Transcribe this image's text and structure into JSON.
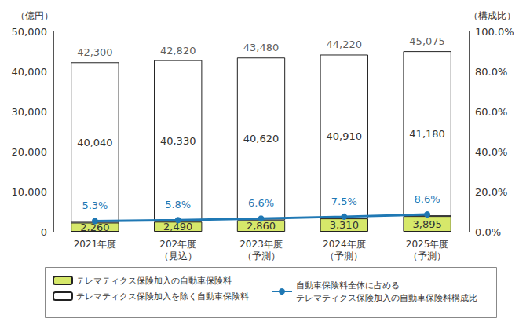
{
  "chart_data": {
    "type": "bar",
    "stacked": true,
    "data_labels": true,
    "grid": false,
    "legend": "bottom",
    "ylabel": "（億円）",
    "y2label": "（構成比）",
    "categories": [
      "2021年度",
      "202年度\n（見込）",
      "2023年度\n（予測）",
      "2024年度\n（予測）",
      "2025年度\n（予測）"
    ],
    "series": [
      {
        "name": "テレマティクス保険加入の自動車保険料",
        "type": "bar",
        "color": "#d6e86a",
        "values": [
          2260,
          2490,
          2860,
          3310,
          3895
        ],
        "value_labels": [
          "2,260",
          "2,490",
          "2,860",
          "3,310",
          "3,895"
        ]
      },
      {
        "name": "テレマティクス保険加入を除く自動車保険料",
        "type": "bar",
        "color": "#ffffff",
        "values": [
          40040,
          40330,
          40620,
          40910,
          41180
        ],
        "value_labels": [
          "40,040",
          "40,330",
          "40,620",
          "40,910",
          "41,180"
        ]
      },
      {
        "name": "自動車保険料全体に占める\nテレマティクス保険加入の自動車保険料構成比",
        "type": "line",
        "axis": "y2",
        "color": "#1f78b4",
        "marker": "circle",
        "values": [
          5.3,
          5.8,
          6.6,
          7.5,
          8.6
        ],
        "value_labels": [
          "5.3%",
          "5.8%",
          "6.6%",
          "7.5%",
          "8.6%"
        ]
      }
    ],
    "totals": {
      "values": [
        42300,
        42820,
        43480,
        44220,
        45075
      ],
      "value_labels": [
        "42,300",
        "42,820",
        "43,480",
        "44,220",
        "45,075"
      ]
    },
    "ylim": [
      0,
      50000
    ],
    "yticks": [
      0,
      {
        "value": 10000,
        "label": "10,000"
      },
      {
        "value": 20000,
        "label": "20,000"
      },
      {
        "value": 30000,
        "label": "30,000"
      },
      {
        "value": 40000,
        "label": "40,000"
      },
      {
        "value": 50000,
        "label": "50,000"
      }
    ],
    "y2lim": [
      0,
      100
    ],
    "y2ticks": [
      {
        "value": 0,
        "label": "0.0%"
      },
      {
        "value": 20,
        "label": "20.0%"
      },
      {
        "value": 40,
        "label": "40.0%"
      },
      {
        "value": 60,
        "label": "60.0%"
      },
      {
        "value": 80,
        "label": "80.0%"
      },
      {
        "value": 100,
        "label": "100.0%"
      }
    ]
  }
}
